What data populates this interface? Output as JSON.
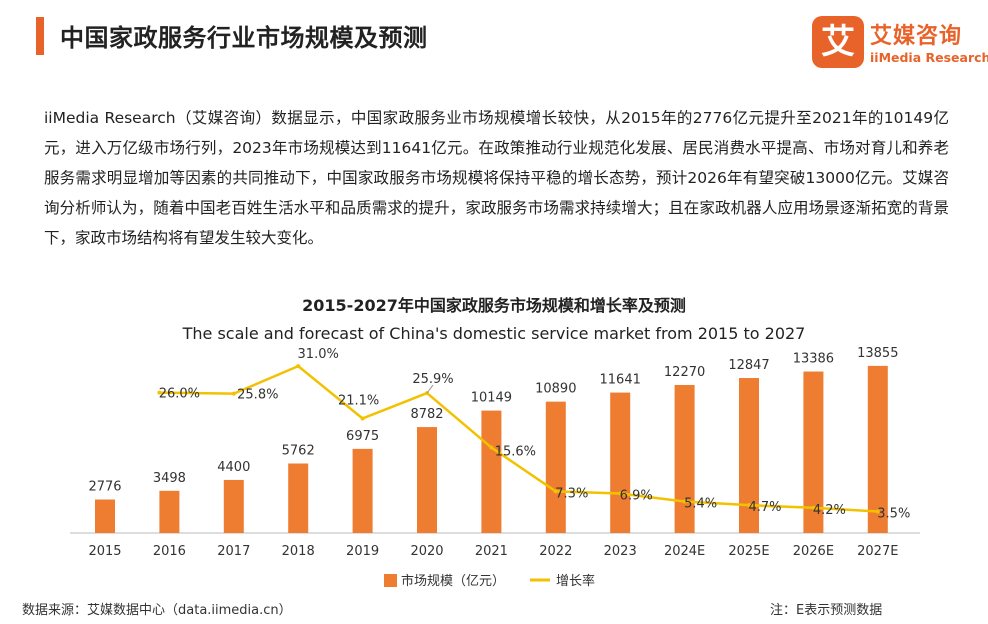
{
  "header": {
    "title": "中国家政服务行业市场规模及预测",
    "accent_color": "#e8632a"
  },
  "logo": {
    "badge_text": "艾",
    "name_cn": "艾媒咨询",
    "name_en": "iiMedia Research"
  },
  "intro_text": "iiMedia Research（艾媒咨询）数据显示，中国家政服务业市场规模增长较快，从2015年的2776亿元提升至2021年的10149亿元，进入万亿级市场行列，2023年市场规模达到11641亿元。在政策推动行业规范化发展、居民消费水平提高、市场对育儿和养老服务需求明显增加等因素的共同推动下，中国家政服务市场规模将保持平稳的增长态势，预计2026年有望突破13000亿元。艾媒咨询分析师认为，随着中国老百姓生活水平和品质需求的提升，家政服务市场需求持续增大；且在家政机器人应用场景逐渐拓宽的背景下，家政市场结构将有望发生较大变化。",
  "chart_data": {
    "type": "bar",
    "title": "2015-2027年中国家政服务市场规模和增长率及预测",
    "subtitle": "The scale and forecast of China's domestic service market from 2015 to 2027",
    "categories": [
      "2015",
      "2016",
      "2017",
      "2018",
      "2019",
      "2020",
      "2021",
      "2022",
      "2023",
      "2024E",
      "2025E",
      "2026E",
      "2027E"
    ],
    "series": [
      {
        "name": "市场规模（亿元）",
        "type": "bar",
        "color": "#ee7d31",
        "values": [
          2776,
          3498,
          4400,
          5762,
          6975,
          8782,
          10149,
          10890,
          11641,
          12270,
          12847,
          13386,
          13855
        ],
        "labels": [
          "2776",
          "3498",
          "4400",
          "5762",
          "6975",
          "8782",
          "10149",
          "10890",
          "11641",
          "12270",
          "12847",
          "13386",
          "13855"
        ]
      },
      {
        "name": "增长率",
        "type": "line",
        "color": "#f2c200",
        "values": [
          null,
          26.0,
          25.8,
          31.0,
          21.1,
          25.9,
          15.6,
          7.3,
          6.9,
          5.4,
          4.7,
          4.2,
          3.5
        ],
        "labels": [
          "",
          "26.0%",
          "25.8%",
          "31.0%",
          "21.1%",
          "25.9%",
          "15.6%",
          "7.3%",
          "6.9%",
          "5.4%",
          "4.7%",
          "4.2%",
          "3.5%"
        ]
      }
    ],
    "ylim_bars": [
      0,
      16000
    ],
    "ylim_line": [
      0,
      35
    ],
    "legend_position": "bottom-center",
    "grid": false
  },
  "footer": {
    "source": "数据来源：艾媒数据中心（data.iimedia.cn）",
    "note": "注：E表示预测数据"
  }
}
